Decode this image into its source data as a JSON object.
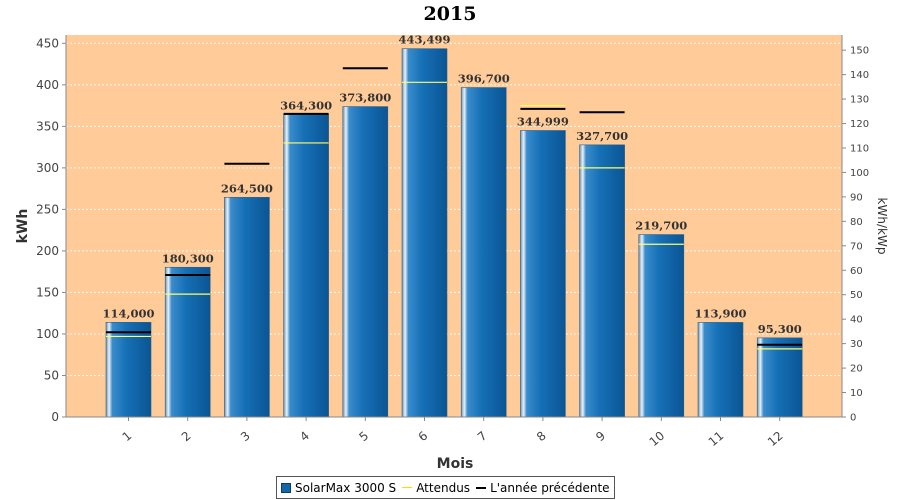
{
  "chart_data": {
    "type": "bar",
    "title": "2015",
    "xlabel": "Mois",
    "ylabel": "kWh",
    "y2label": "kWh/kWp",
    "categories": [
      "1",
      "2",
      "3",
      "4",
      "5",
      "6",
      "7",
      "8",
      "9",
      "10",
      "11",
      "12"
    ],
    "series": [
      {
        "name": "SolarMax 3000 S",
        "kind": "bar",
        "values": [
          114,
          180.3,
          264.5,
          364.3,
          373.8,
          443.499,
          396.7,
          344.999,
          327.7,
          219.7,
          113.9,
          95.3
        ]
      },
      {
        "name": "Attendus",
        "kind": "marker",
        "values": [
          97,
          148,
          null,
          330,
          null,
          403,
          null,
          375,
          300,
          208,
          null,
          82
        ]
      },
      {
        "name": "L'année précédente",
        "kind": "marker",
        "values": [
          102,
          171,
          305,
          365,
          420,
          null,
          null,
          371,
          367,
          null,
          null,
          87
        ]
      }
    ],
    "data_labels": [
      "114,000",
      "180,300",
      "264,500",
      "364,300",
      "373,800",
      "443,499",
      "396,700",
      "344,999",
      "327,700",
      "219,700",
      "113,900",
      "95,300"
    ],
    "ylim": [
      0,
      460
    ],
    "yticks": [
      0,
      50,
      100,
      150,
      200,
      250,
      300,
      350,
      400,
      450
    ],
    "y2lim": [
      0,
      156.2
    ],
    "y2ticks": [
      0,
      10,
      20,
      30,
      40,
      50,
      60,
      70,
      80,
      90,
      100,
      110,
      120,
      130,
      140,
      150
    ],
    "grid": true,
    "legend_position": "bottom",
    "colors": {
      "plot_background": "#ffcc99",
      "bar": "#1466a8",
      "expected_line": "#ffff66",
      "previous_year_line": "#000000",
      "grid": "#ffffff"
    }
  }
}
